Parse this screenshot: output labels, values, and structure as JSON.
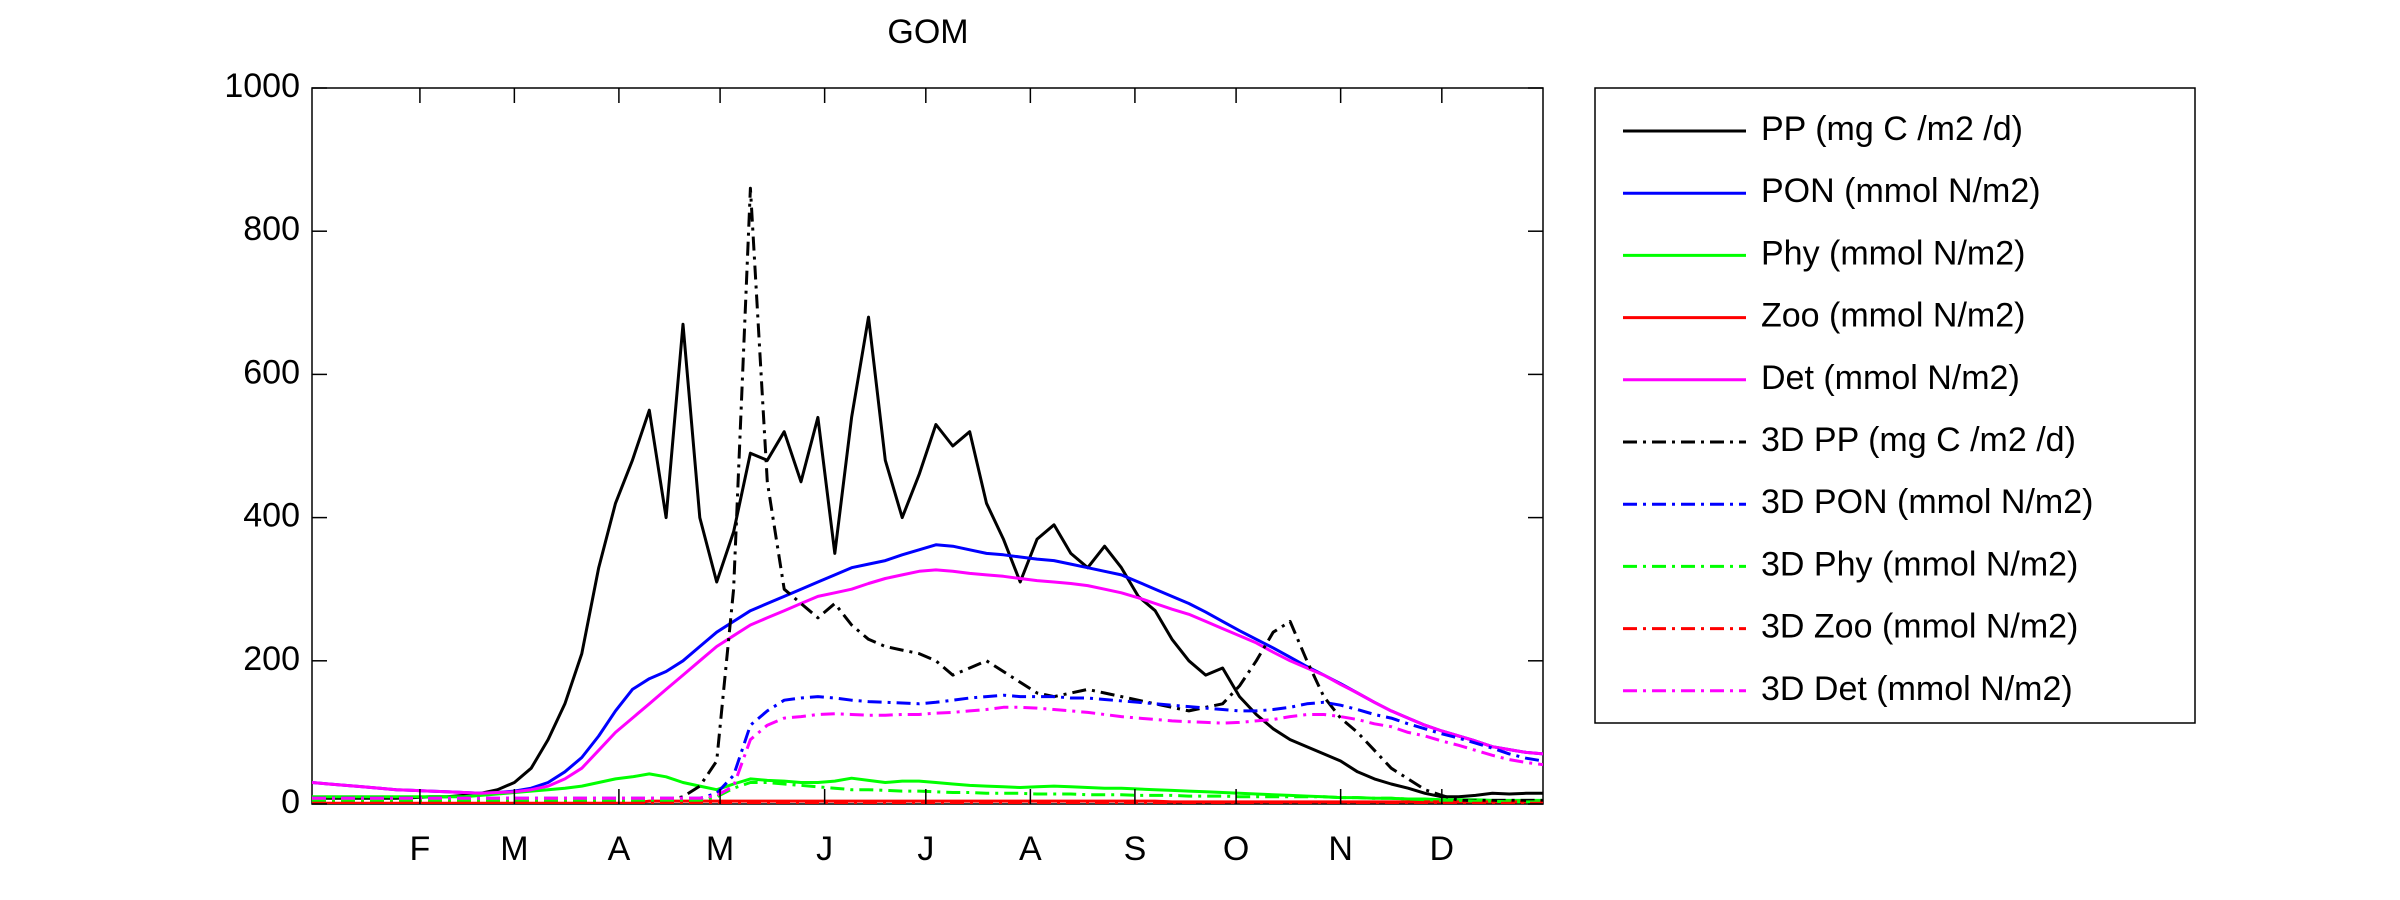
{
  "chart_data": {
    "type": "line",
    "title": "GOM",
    "x": [
      0,
      5,
      10,
      15,
      20,
      25,
      30,
      35,
      40,
      45,
      50,
      55,
      60,
      65,
      70,
      75,
      80,
      85,
      90,
      95,
      100,
      105,
      110,
      115,
      120,
      125,
      130,
      135,
      140,
      145,
      150,
      155,
      160,
      165,
      170,
      175,
      180,
      185,
      190,
      195,
      200,
      205,
      210,
      215,
      220,
      225,
      230,
      235,
      240,
      245,
      250,
      255,
      260,
      265,
      270,
      275,
      280,
      285,
      290,
      295,
      300,
      305,
      310,
      315,
      320,
      325,
      330,
      335,
      340,
      345,
      350,
      355,
      360,
      365
    ],
    "xlim": [
      0,
      365
    ],
    "xticks": [
      {
        "value": 32,
        "label": "F"
      },
      {
        "value": 60,
        "label": "M"
      },
      {
        "value": 91,
        "label": "A"
      },
      {
        "value": 121,
        "label": "M"
      },
      {
        "value": 152,
        "label": "J"
      },
      {
        "value": 182,
        "label": "J"
      },
      {
        "value": 213,
        "label": "A"
      },
      {
        "value": 244,
        "label": "S"
      },
      {
        "value": 274,
        "label": "O"
      },
      {
        "value": 305,
        "label": "N"
      },
      {
        "value": 335,
        "label": "D"
      }
    ],
    "ylim": [
      0,
      1000
    ],
    "yticks": [
      0,
      200,
      400,
      600,
      800,
      1000
    ],
    "legend": "outside-right",
    "series": [
      {
        "name": "PP (mg C /m2 /d)",
        "color": "#000000",
        "style": "solid",
        "values": [
          8,
          8,
          8,
          8,
          8,
          8,
          9,
          10,
          10,
          12,
          15,
          20,
          30,
          50,
          90,
          140,
          210,
          330,
          420,
          480,
          550,
          400,
          670,
          400,
          310,
          380,
          490,
          480,
          520,
          450,
          540,
          350,
          540,
          680,
          480,
          400,
          460,
          530,
          500,
          520,
          420,
          370,
          310,
          370,
          390,
          350,
          330,
          360,
          330,
          290,
          270,
          230,
          200,
          180,
          190,
          150,
          125,
          105,
          90,
          80,
          70,
          60,
          45,
          35,
          28,
          22,
          15,
          10,
          10,
          12,
          15,
          14,
          15,
          15
        ]
      },
      {
        "name": "PON (mmol N/m2)",
        "color": "#0000ff",
        "style": "solid",
        "values": [
          30,
          28,
          26,
          24,
          22,
          20,
          19,
          18,
          17,
          16,
          15,
          16,
          18,
          22,
          30,
          45,
          65,
          95,
          130,
          160,
          175,
          185,
          200,
          220,
          240,
          255,
          270,
          280,
          290,
          300,
          310,
          320,
          330,
          335,
          340,
          348,
          355,
          362,
          360,
          355,
          350,
          348,
          345,
          342,
          340,
          335,
          330,
          325,
          320,
          310,
          300,
          290,
          280,
          268,
          255,
          242,
          230,
          218,
          205,
          192,
          180,
          168,
          155,
          142,
          130,
          120,
          110,
          102,
          95,
          88,
          80,
          76,
          72,
          70
        ]
      },
      {
        "name": "Phy (mmol N/m2)",
        "color": "#00ff00",
        "style": "solid",
        "values": [
          10,
          10,
          10,
          10,
          10,
          10,
          10,
          10,
          10,
          10,
          12,
          14,
          16,
          18,
          20,
          22,
          25,
          30,
          35,
          38,
          42,
          38,
          30,
          25,
          20,
          28,
          35,
          33,
          32,
          30,
          30,
          32,
          36,
          33,
          30,
          32,
          32,
          30,
          28,
          26,
          25,
          24,
          23,
          24,
          25,
          24,
          23,
          22,
          22,
          21,
          20,
          19,
          18,
          17,
          16,
          15,
          14,
          13,
          12,
          11,
          10,
          9,
          9,
          8,
          8,
          7,
          7,
          6,
          6,
          6,
          5,
          5,
          5,
          5
        ]
      },
      {
        "name": "Zoo (mmol N/m2)",
        "color": "#ff0000",
        "style": "solid",
        "values": [
          1,
          1,
          1,
          1,
          1,
          1,
          1,
          1,
          1,
          1,
          1,
          1,
          1,
          1,
          1,
          1,
          1,
          1,
          1,
          1,
          4,
          4,
          4,
          4,
          4,
          4,
          4,
          4,
          4,
          4,
          4,
          4,
          4,
          4,
          4,
          4,
          4,
          4,
          4,
          4,
          4,
          4,
          4,
          4,
          4,
          4,
          4,
          4,
          4,
          4,
          4,
          3,
          3,
          3,
          3,
          3,
          3,
          3,
          3,
          3,
          3,
          3,
          3,
          3,
          3,
          3,
          3,
          3,
          3,
          3,
          3,
          3,
          3,
          3
        ]
      },
      {
        "name": "Det (mmol N/m2)",
        "color": "#ff00ff",
        "style": "solid",
        "values": [
          30,
          28,
          26,
          24,
          22,
          20,
          19,
          18,
          17,
          16,
          15,
          16,
          17,
          20,
          25,
          35,
          50,
          75,
          100,
          120,
          140,
          160,
          180,
          200,
          220,
          235,
          250,
          260,
          270,
          280,
          290,
          295,
          300,
          308,
          315,
          320,
          325,
          327,
          325,
          322,
          320,
          318,
          315,
          312,
          310,
          308,
          305,
          300,
          295,
          288,
          280,
          272,
          265,
          255,
          245,
          235,
          225,
          212,
          200,
          190,
          180,
          167,
          155,
          142,
          130,
          120,
          110,
          102,
          95,
          88,
          80,
          76,
          72,
          70
        ]
      },
      {
        "name": "3D PP (mg C /m2 /d)",
        "color": "#000000",
        "style": "dashdot",
        "values": [
          5,
          5,
          5,
          5,
          5,
          5,
          5,
          5,
          5,
          5,
          5,
          5,
          5,
          5,
          5,
          5,
          5,
          5,
          5,
          5,
          5,
          5,
          10,
          25,
          60,
          300,
          860,
          450,
          300,
          280,
          260,
          280,
          250,
          230,
          220,
          215,
          210,
          200,
          180,
          190,
          200,
          185,
          170,
          155,
          150,
          155,
          160,
          155,
          150,
          145,
          140,
          135,
          130,
          135,
          140,
          165,
          200,
          240,
          255,
          200,
          150,
          120,
          100,
          75,
          50,
          35,
          20,
          12,
          5,
          5,
          5,
          5,
          5,
          5
        ]
      },
      {
        "name": "3D PON (mmol N/m2)",
        "color": "#0000ff",
        "style": "dashdot",
        "values": [
          8,
          8,
          8,
          8,
          8,
          8,
          8,
          8,
          8,
          8,
          8,
          8,
          8,
          8,
          8,
          8,
          8,
          8,
          8,
          8,
          8,
          8,
          8,
          8,
          15,
          40,
          110,
          130,
          145,
          148,
          150,
          148,
          145,
          143,
          142,
          141,
          140,
          142,
          145,
          148,
          150,
          152,
          150,
          150,
          150,
          148,
          148,
          146,
          144,
          142,
          140,
          138,
          136,
          134,
          132,
          130,
          130,
          132,
          135,
          140,
          142,
          138,
          132,
          125,
          120,
          112,
          105,
          98,
          92,
          85,
          78,
          70,
          64,
          60
        ]
      },
      {
        "name": "3D Phy (mmol N/m2)",
        "color": "#00ff00",
        "style": "dashdot",
        "values": [
          5,
          5,
          5,
          5,
          5,
          5,
          5,
          5,
          5,
          5,
          5,
          5,
          5,
          5,
          5,
          5,
          5,
          5,
          5,
          5,
          5,
          5,
          5,
          5,
          10,
          22,
          30,
          30,
          28,
          26,
          24,
          22,
          20,
          20,
          19,
          18,
          18,
          17,
          16,
          16,
          15,
          15,
          15,
          14,
          14,
          14,
          13,
          13,
          13,
          12,
          12,
          12,
          11,
          11,
          11,
          10,
          10,
          10,
          10,
          10,
          10,
          9,
          9,
          8,
          8,
          7,
          6,
          5,
          5,
          4,
          4,
          3,
          3,
          3
        ]
      },
      {
        "name": "3D Zoo (mmol N/m2)",
        "color": "#ff0000",
        "style": "dashdot",
        "values": [
          1,
          1,
          1,
          1,
          1,
          1,
          1,
          1,
          1,
          1,
          1,
          1,
          1,
          1,
          1,
          1,
          1,
          1,
          1,
          1,
          1,
          1,
          1,
          1,
          1,
          1,
          1,
          1,
          1,
          1,
          1,
          1,
          1,
          1,
          1,
          1,
          1,
          1,
          1,
          1,
          1,
          1,
          1,
          1,
          1,
          1,
          1,
          1,
          1,
          1,
          1,
          1,
          1,
          1,
          1,
          1,
          1,
          1,
          1,
          1,
          1,
          1,
          1,
          1,
          1,
          1,
          1,
          1,
          1,
          1,
          1,
          1,
          1,
          1
        ]
      },
      {
        "name": "3D Det (mmol N/m2)",
        "color": "#ff00ff",
        "style": "dashdot",
        "values": [
          8,
          8,
          8,
          8,
          8,
          8,
          8,
          8,
          8,
          8,
          8,
          8,
          8,
          8,
          8,
          8,
          8,
          8,
          8,
          8,
          8,
          8,
          8,
          8,
          12,
          25,
          90,
          110,
          120,
          122,
          125,
          126,
          125,
          124,
          124,
          125,
          125,
          127,
          128,
          130,
          132,
          135,
          135,
          134,
          132,
          130,
          128,
          125,
          122,
          120,
          118,
          116,
          115,
          114,
          113,
          114,
          116,
          118,
          122,
          125,
          125,
          122,
          118,
          112,
          108,
          100,
          95,
          88,
          82,
          75,
          68,
          62,
          58,
          55
        ]
      }
    ]
  }
}
